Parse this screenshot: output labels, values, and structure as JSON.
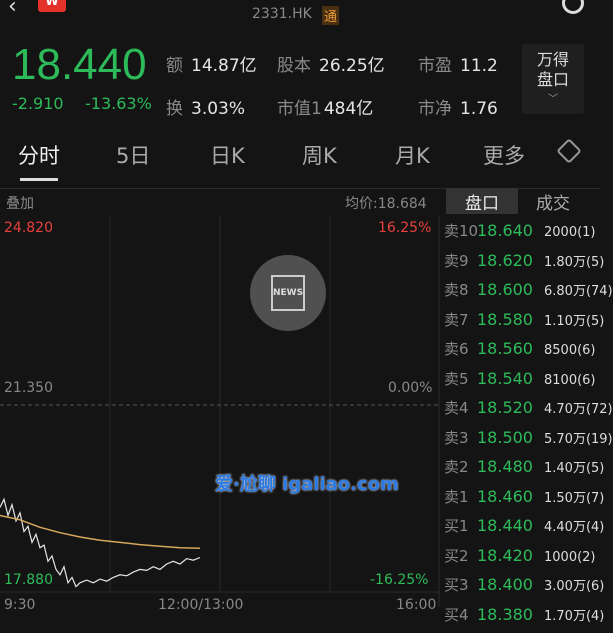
{
  "header": {
    "back_icon": "chevron-left",
    "app_badge": "W",
    "symbol": "2331.HK",
    "connect_badge": "通",
    "search_icon": "search"
  },
  "quote": {
    "price": "18.440",
    "change": "-2.910",
    "change_pct": "-13.63%",
    "stats": [
      {
        "k": "额",
        "v": "14.87亿"
      },
      {
        "k": "股本",
        "v": "26.25亿"
      },
      {
        "k": "市盈",
        "v": "11.2"
      },
      {
        "k": "换",
        "v": "3.03%"
      },
      {
        "k": "市值1",
        "v": "484亿"
      },
      {
        "k": "市净",
        "v": "1.76"
      }
    ],
    "wind_button": [
      "万得",
      "盘口"
    ]
  },
  "tabs": [
    "分时",
    "5日",
    "日K",
    "周K",
    "月K",
    "更多"
  ],
  "chart": {
    "overlay_label": "叠加",
    "avg_label": "均价:18.684",
    "top_price": "24.820",
    "mid_price": "21.350",
    "bottom_price": "17.880",
    "top_pct": "16.25%",
    "mid_pct": "0.00%",
    "bottom_pct": "-16.25%",
    "x_labels": [
      "9:30",
      "12:00/13:00",
      "16:00"
    ]
  },
  "chart_data": {
    "type": "line",
    "ylim": [
      17.88,
      24.82
    ],
    "x_domain_minutes": [
      0,
      330
    ],
    "series": [
      {
        "values": [
          [
            0,
            19.45
          ],
          [
            3,
            19.6
          ],
          [
            6,
            19.3
          ],
          [
            9,
            19.5
          ],
          [
            12,
            19.2
          ],
          [
            15,
            19.35
          ],
          [
            18,
            19.0
          ],
          [
            21,
            19.1
          ],
          [
            24,
            18.8
          ],
          [
            27,
            18.95
          ],
          [
            30,
            18.7
          ],
          [
            33,
            18.75
          ],
          [
            36,
            18.45
          ],
          [
            39,
            18.55
          ],
          [
            42,
            18.3
          ],
          [
            45,
            18.2
          ],
          [
            48,
            18.35
          ],
          [
            51,
            18.05
          ],
          [
            54,
            18.15
          ],
          [
            57,
            17.98
          ],
          [
            60,
            18.05
          ],
          [
            65,
            18.1
          ],
          [
            70,
            18.05
          ],
          [
            75,
            18.12
          ],
          [
            80,
            18.08
          ],
          [
            85,
            18.15
          ],
          [
            90,
            18.2
          ],
          [
            95,
            18.18
          ],
          [
            100,
            18.25
          ],
          [
            105,
            18.3
          ],
          [
            110,
            18.28
          ],
          [
            115,
            18.35
          ],
          [
            120,
            18.3
          ],
          [
            125,
            18.4
          ],
          [
            130,
            18.45
          ],
          [
            135,
            18.4
          ],
          [
            140,
            18.5
          ],
          [
            145,
            18.47
          ],
          [
            150,
            18.52
          ]
        ]
      },
      {
        "values": [
          [
            0,
            19.3
          ],
          [
            15,
            19.22
          ],
          [
            30,
            19.08
          ],
          [
            45,
            18.98
          ],
          [
            60,
            18.9
          ],
          [
            75,
            18.84
          ],
          [
            90,
            18.8
          ],
          [
            105,
            18.76
          ],
          [
            120,
            18.73
          ],
          [
            135,
            18.7
          ],
          [
            150,
            18.69
          ]
        ]
      }
    ],
    "colors": {
      "price": "#e6e6e6",
      "avg": "#d9a75e"
    }
  },
  "orderbook": {
    "tabs": [
      "盘口",
      "成交"
    ],
    "rows": [
      [
        "卖10",
        "18.640",
        "2000(1)"
      ],
      [
        "卖9",
        "18.620",
        "1.80万(5)"
      ],
      [
        "卖8",
        "18.600",
        "6.80万(74)"
      ],
      [
        "卖7",
        "18.580",
        "1.10万(5)"
      ],
      [
        "卖6",
        "18.560",
        "8500(6)"
      ],
      [
        "卖5",
        "18.540",
        "8100(6)"
      ],
      [
        "卖4",
        "18.520",
        "4.70万(72)"
      ],
      [
        "卖3",
        "18.500",
        "5.70万(19)"
      ],
      [
        "卖2",
        "18.480",
        "1.40万(5)"
      ],
      [
        "卖1",
        "18.460",
        "1.50万(7)"
      ],
      [
        "买1",
        "18.440",
        "4.40万(4)"
      ],
      [
        "买2",
        "18.420",
        "1000(2)"
      ],
      [
        "买3",
        "18.400",
        "3.00万(6)"
      ],
      [
        "买4",
        "18.380",
        "1.70万(4)"
      ]
    ]
  },
  "news_button": "NEWS",
  "watermark": "爱·尬聊 igaliao.com"
}
